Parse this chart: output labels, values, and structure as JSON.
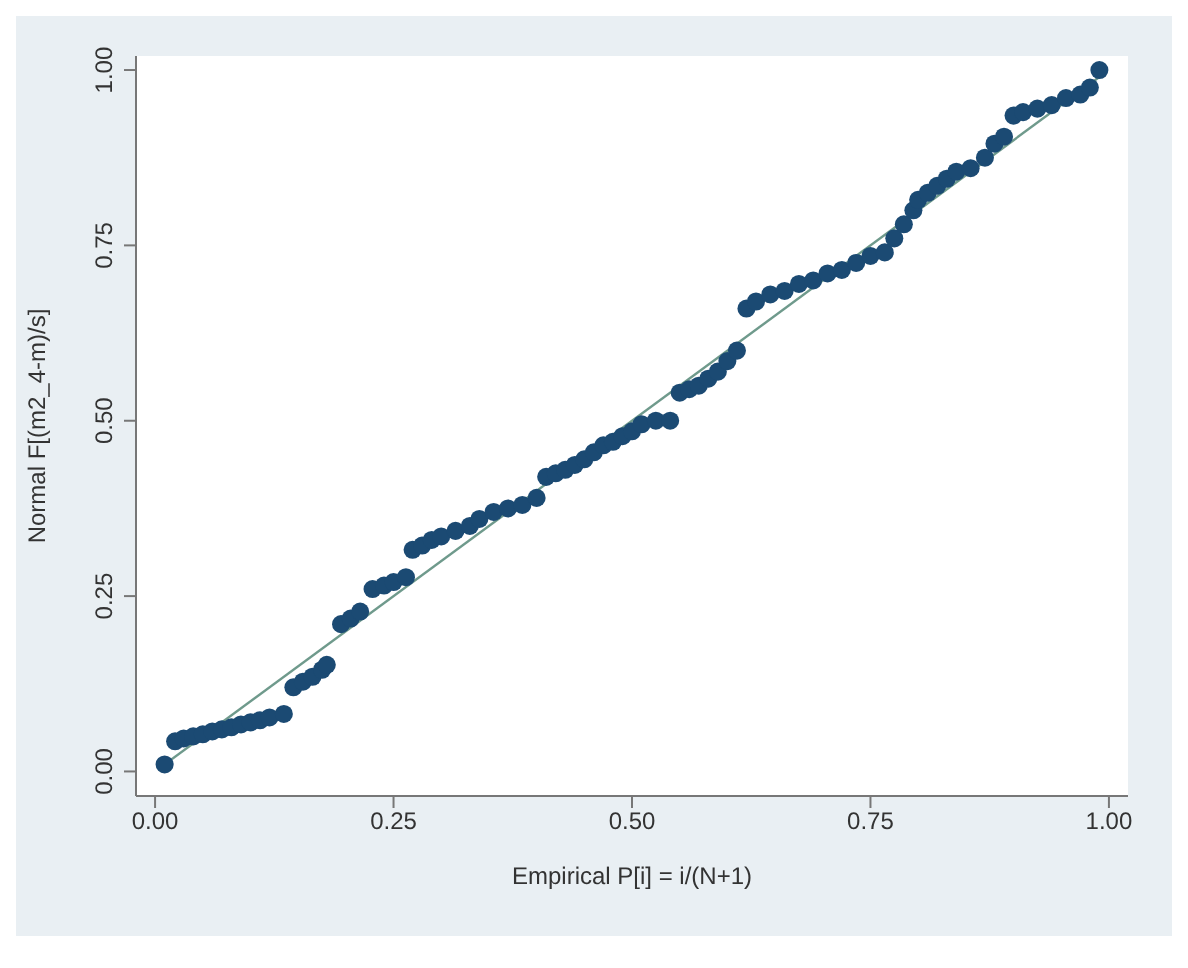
{
  "chart_data": {
    "type": "scatter",
    "xlabel": "Empirical P[i] = i/(N+1)",
    "ylabel": "Normal F[(m2_4-m)/s]",
    "xlim": [
      -0.02,
      1.02
    ],
    "ylim": [
      -0.035,
      1.02
    ],
    "xticks": [
      {
        "value": 0,
        "label": "0.00"
      },
      {
        "value": 0.25,
        "label": "0.25"
      },
      {
        "value": 0.5,
        "label": "0.50"
      },
      {
        "value": 0.75,
        "label": "0.75"
      },
      {
        "value": 1,
        "label": "1.00"
      }
    ],
    "yticks": [
      {
        "value": 0,
        "label": "0.00"
      },
      {
        "value": 0.25,
        "label": "0.25"
      },
      {
        "value": 0.5,
        "label": "0.50"
      },
      {
        "value": 0.75,
        "label": "0.75"
      },
      {
        "value": 1,
        "label": "1.00"
      }
    ],
    "marker": "circle",
    "series": [
      {
        "color": "#1b4a73",
        "x": [
          0.01,
          0.021,
          0.03,
          0.04,
          0.05,
          0.06,
          0.07,
          0.08,
          0.09,
          0.1,
          0.11,
          0.12,
          0.135,
          0.145,
          0.155,
          0.165,
          0.175,
          0.18,
          0.195,
          0.205,
          0.215,
          0.228,
          0.24,
          0.25,
          0.263,
          0.27,
          0.28,
          0.29,
          0.3,
          0.315,
          0.33,
          0.34,
          0.355,
          0.37,
          0.385,
          0.4,
          0.41,
          0.42,
          0.43,
          0.44,
          0.45,
          0.46,
          0.47,
          0.48,
          0.49,
          0.5,
          0.51,
          0.525,
          0.54,
          0.55,
          0.56,
          0.57,
          0.58,
          0.59,
          0.6,
          0.61,
          0.62,
          0.63,
          0.645,
          0.66,
          0.675,
          0.69,
          0.705,
          0.72,
          0.735,
          0.75,
          0.765,
          0.775,
          0.785,
          0.795,
          0.8,
          0.81,
          0.82,
          0.83,
          0.84,
          0.855,
          0.87,
          0.88,
          0.89,
          0.9,
          0.91,
          0.925,
          0.94,
          0.955,
          0.97,
          0.98,
          0.99
        ],
        "values": [
          0.01,
          0.043,
          0.047,
          0.05,
          0.053,
          0.057,
          0.06,
          0.063,
          0.067,
          0.07,
          0.073,
          0.077,
          0.082,
          0.12,
          0.128,
          0.135,
          0.145,
          0.152,
          0.21,
          0.218,
          0.228,
          0.26,
          0.265,
          0.27,
          0.277,
          0.316,
          0.322,
          0.33,
          0.335,
          0.343,
          0.35,
          0.36,
          0.37,
          0.375,
          0.38,
          0.39,
          0.42,
          0.425,
          0.43,
          0.437,
          0.445,
          0.455,
          0.465,
          0.47,
          0.478,
          0.485,
          0.495,
          0.5,
          0.5,
          0.54,
          0.545,
          0.55,
          0.56,
          0.57,
          0.585,
          0.6,
          0.66,
          0.67,
          0.68,
          0.685,
          0.695,
          0.7,
          0.71,
          0.715,
          0.725,
          0.735,
          0.74,
          0.76,
          0.78,
          0.8,
          0.815,
          0.825,
          0.835,
          0.845,
          0.855,
          0.86,
          0.875,
          0.895,
          0.905,
          0.935,
          0.94,
          0.945,
          0.95,
          0.96,
          0.965,
          0.975,
          1.0
        ]
      },
      {
        "type": "line",
        "marker": "none",
        "color": "#6f9a8c",
        "x": [
          0.01,
          0.99
        ],
        "values": [
          0.01,
          0.99
        ]
      }
    ]
  }
}
